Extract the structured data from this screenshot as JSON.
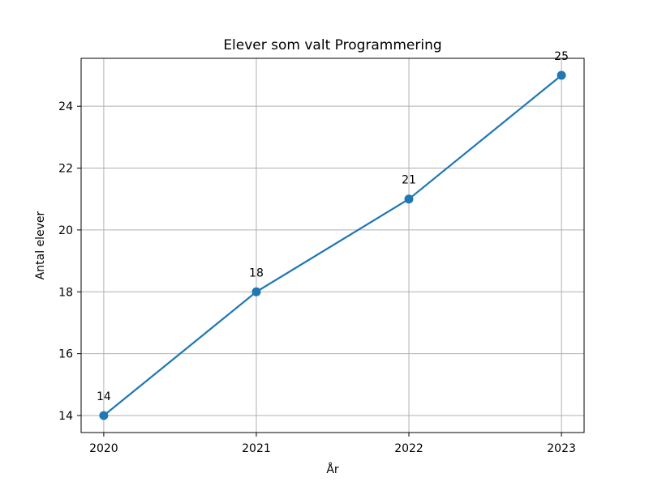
{
  "chart_data": {
    "type": "line",
    "title": "Elever som valt Programmering",
    "xlabel": "År",
    "ylabel": "Antal elever",
    "x": [
      "2020",
      "2021",
      "2022",
      "2023"
    ],
    "series": [
      {
        "values": [
          14,
          18,
          21,
          25
        ],
        "color": "#1f77b4"
      }
    ],
    "data_labels": [
      "14",
      "18",
      "21",
      "25"
    ],
    "ylim": [
      13.45,
      25.55
    ],
    "yticks": [
      14,
      16,
      18,
      20,
      22,
      24
    ],
    "ytick_labels": [
      "14",
      "16",
      "18",
      "20",
      "22",
      "24"
    ],
    "grid": true,
    "marker": "circle"
  }
}
